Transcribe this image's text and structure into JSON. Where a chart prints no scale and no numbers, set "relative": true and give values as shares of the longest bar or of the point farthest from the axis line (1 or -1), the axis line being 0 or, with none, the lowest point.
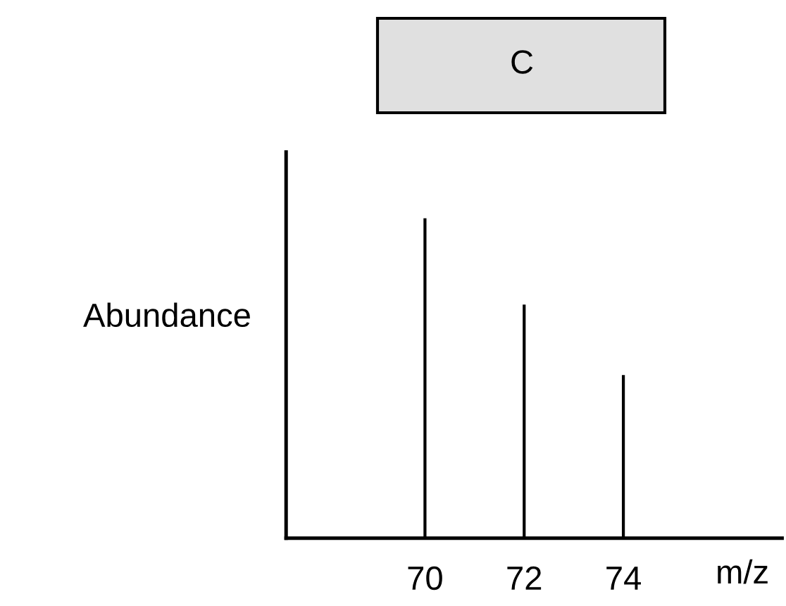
{
  "chart_data": {
    "type": "bar",
    "title": "C",
    "xlabel": "m/z",
    "ylabel": "Abundance",
    "x": [
      70,
      72,
      74
    ],
    "values": [
      1,
      0.73,
      0.51
    ],
    "color": "#000000",
    "relative": true,
    "xlim": [
      67.2,
      77.2
    ],
    "xticks": [
      70,
      72,
      74
    ],
    "grid": false
  }
}
